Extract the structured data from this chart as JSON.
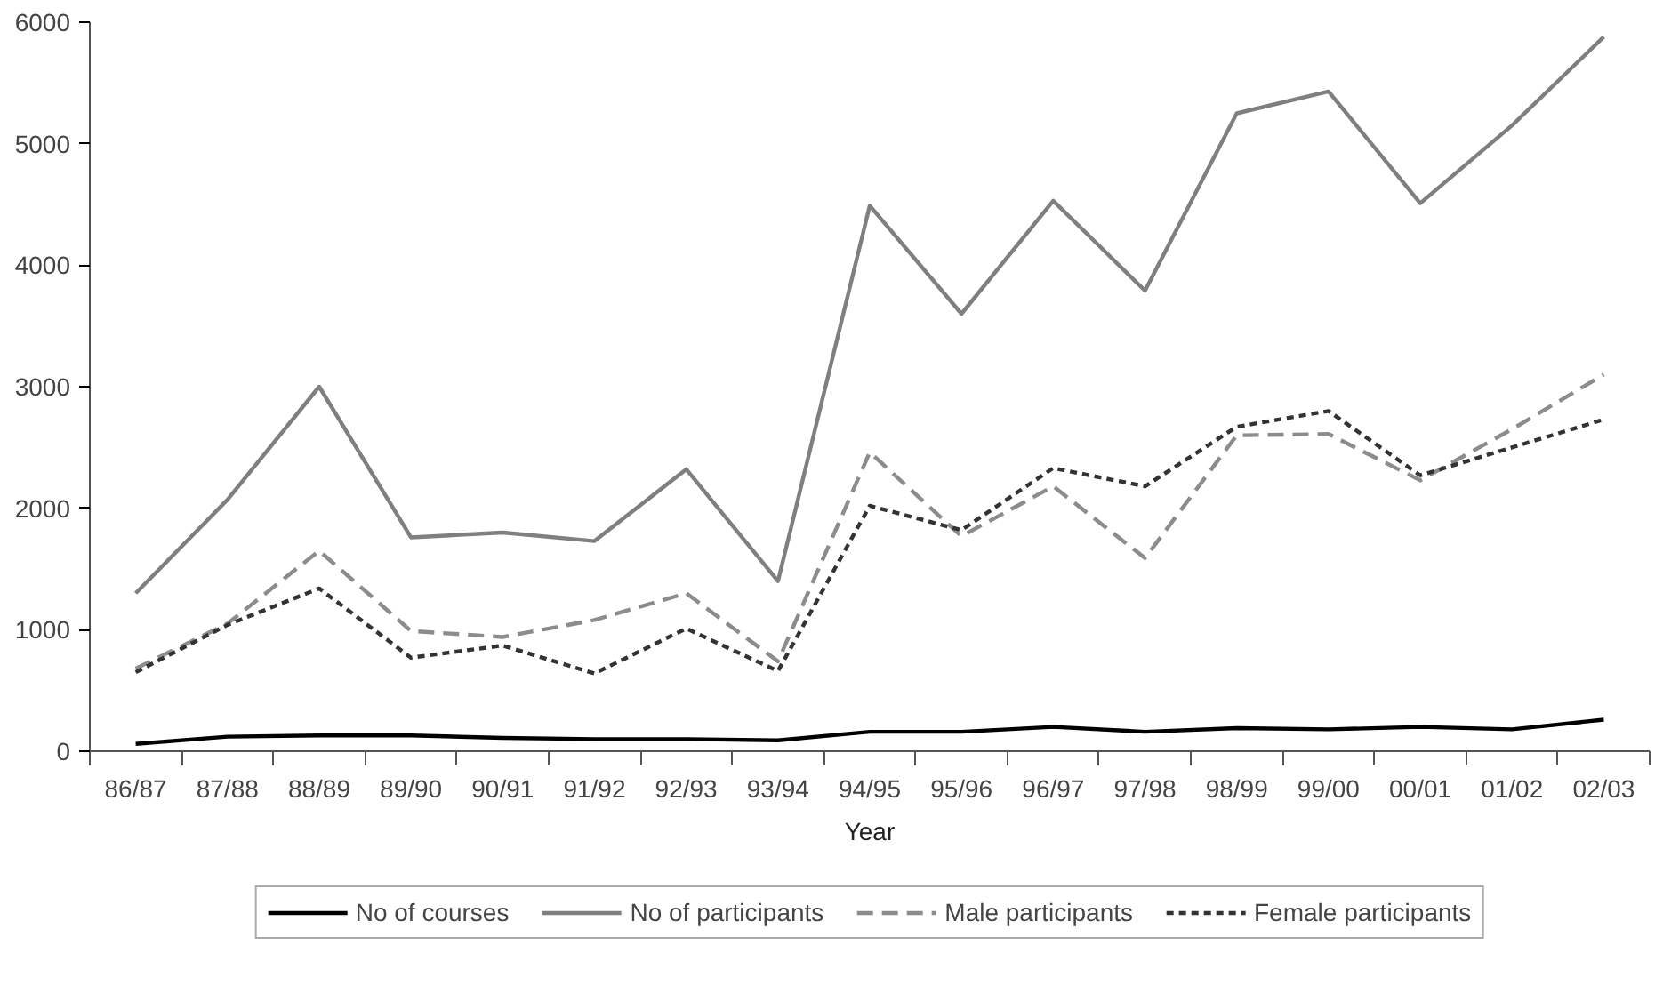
{
  "chart_data": {
    "type": "line",
    "xlabel": "Year",
    "categories": [
      "86/87",
      "87/88",
      "88/89",
      "89/90",
      "90/91",
      "91/92",
      "92/93",
      "93/94",
      "94/95",
      "95/96",
      "96/97",
      "97/98",
      "98/99",
      "99/00",
      "00/01",
      "01/02",
      "02/03"
    ],
    "series": [
      {
        "name": "No of courses",
        "color": "#000000",
        "line_style": "solid",
        "values": [
          60,
          120,
          130,
          130,
          110,
          100,
          100,
          90,
          160,
          160,
          200,
          160,
          190,
          180,
          200,
          180,
          260
        ]
      },
      {
        "name": "No of participants",
        "color": "#7f7f7f",
        "line_style": "solid",
        "values": [
          1300,
          2070,
          3000,
          1760,
          1800,
          1730,
          2320,
          1400,
          4490,
          3600,
          4530,
          3790,
          5250,
          5430,
          4510,
          5150,
          5880
        ]
      },
      {
        "name": "Male participants",
        "color": "#8c8c8c",
        "line_style": "dashed",
        "values": [
          680,
          1050,
          1650,
          990,
          940,
          1080,
          1300,
          740,
          2460,
          1770,
          2180,
          1590,
          2600,
          2610,
          2230,
          2650,
          3100
        ]
      },
      {
        "name": "Female participants",
        "color": "#333333",
        "line_style": "dotted",
        "values": [
          650,
          1040,
          1340,
          770,
          870,
          640,
          1010,
          660,
          2020,
          1820,
          2330,
          2180,
          2670,
          2800,
          2270,
          2500,
          2730
        ]
      }
    ],
    "ylim": [
      0,
      6000
    ],
    "yticks": [
      0,
      1000,
      2000,
      3000,
      4000,
      5000,
      6000
    ],
    "grid": false,
    "legend": "bottom",
    "marker": "none"
  }
}
